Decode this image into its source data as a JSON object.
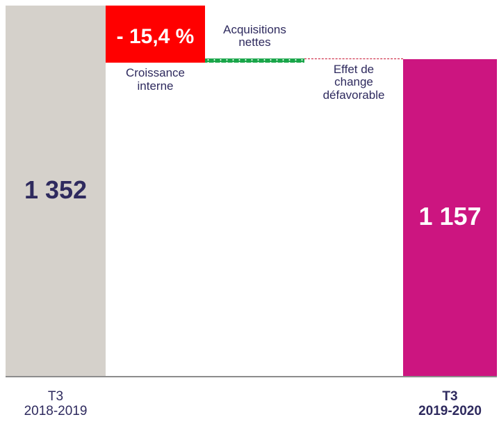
{
  "chart_data": {
    "type": "waterfall",
    "categories": [
      "T3\n2018-2019",
      "Croissance\ninterne",
      "Acquisitions\nnettes",
      "Effet de\nchange\ndéfavorable",
      "T3\n2019-2020"
    ],
    "values": [
      1352,
      -208,
      16,
      -3,
      1157
    ],
    "value_labels": [
      "1 352",
      null,
      null,
      null,
      "1 157"
    ],
    "colors": [
      "#d5d1cb",
      "#ff0000",
      "#1aa64a",
      "#c8102e",
      "#cc1580"
    ],
    "annotation": "- 15,4 %"
  }
}
